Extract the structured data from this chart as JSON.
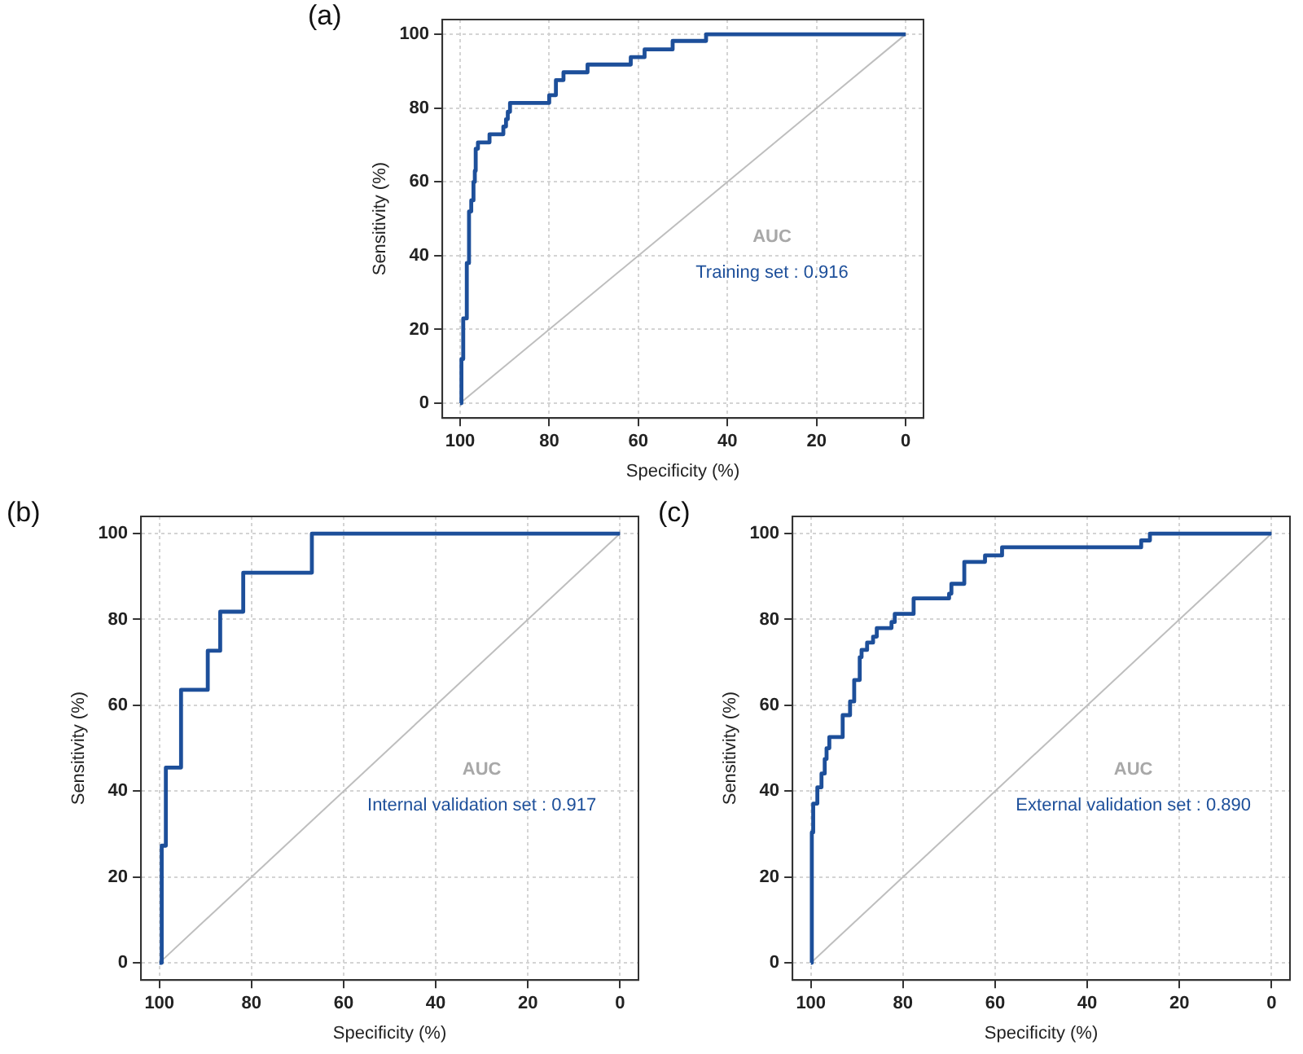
{
  "chart_data": [
    {
      "type": "line",
      "xlabel": "Specificity (%)",
      "ylabel": "Sensitivity (%)",
      "xlim": [
        104,
        -4
      ],
      "ylim": [
        -4,
        104
      ],
      "xticks": [
        100,
        80,
        60,
        40,
        20,
        0
      ],
      "yticks": [
        0,
        20,
        40,
        60,
        80,
        100
      ],
      "grid": true,
      "annotations": [
        "(a)",
        "AUC",
        "Training set : 0.916"
      ],
      "series": [
        {
          "color": "#1d4f9a",
          "x": [
            100,
            99.7,
            99.7,
            99.3,
            99.3,
            98.5,
            98.5,
            98,
            98,
            97.5,
            97.5,
            97,
            97,
            96.7,
            96.7,
            96.5,
            96.5,
            96,
            96,
            93.4,
            93.4,
            90.3,
            90.3,
            89.7,
            89.7,
            89.3,
            89.3,
            88.8,
            88.8,
            80,
            80,
            78.5,
            78.5,
            76.8,
            76.8,
            71.4,
            71.4,
            61.7,
            61.7,
            58.6,
            58.6,
            52.3,
            52.3,
            44.8,
            44.8,
            0
          ],
          "values": [
            0,
            0,
            12,
            12,
            23,
            23,
            38,
            38,
            52,
            52,
            55,
            55,
            60,
            60,
            63,
            63,
            69,
            69,
            70.7,
            70.7,
            72.9,
            72.9,
            75,
            75,
            77,
            77,
            79,
            79,
            81.4,
            81.4,
            83.5,
            83.5,
            87.6,
            87.6,
            89.7,
            89.7,
            91.8,
            91.8,
            93.8,
            93.8,
            95.9,
            95.9,
            98.2,
            98.2,
            100,
            100
          ]
        },
        {
          "color": "#bebebe",
          "x": [
            100,
            0
          ],
          "values": [
            0,
            100
          ]
        }
      ]
    },
    {
      "type": "line",
      "xlabel": "Specificity (%)",
      "ylabel": "Sensitivity (%)",
      "xlim": [
        104,
        -4
      ],
      "ylim": [
        -4,
        104
      ],
      "xticks": [
        100,
        80,
        60,
        40,
        20,
        0
      ],
      "yticks": [
        0,
        20,
        40,
        60,
        80,
        100
      ],
      "grid": true,
      "annotations": [
        "(b)",
        "AUC",
        "Internal validation set : 0.917"
      ],
      "series": [
        {
          "color": "#1d4f9a",
          "x": [
            100,
            99.5,
            99.5,
            98.6,
            98.6,
            95.3,
            95.3,
            89.5,
            89.5,
            86.8,
            86.8,
            81.8,
            81.8,
            66.9,
            66.9,
            0
          ],
          "values": [
            0,
            0,
            27.3,
            27.3,
            45.5,
            45.5,
            63.6,
            63.6,
            72.7,
            72.7,
            81.8,
            81.8,
            90.9,
            90.9,
            100,
            100
          ]
        },
        {
          "color": "#bebebe",
          "x": [
            100,
            0
          ],
          "values": [
            0,
            100
          ]
        }
      ]
    },
    {
      "type": "line",
      "xlabel": "Specificity (%)",
      "ylabel": "Sensitivity (%)",
      "xlim": [
        104,
        -4
      ],
      "ylim": [
        -4,
        104
      ],
      "xticks": [
        100,
        80,
        60,
        40,
        20,
        0
      ],
      "yticks": [
        0,
        20,
        40,
        60,
        80,
        100
      ],
      "grid": true,
      "annotations": [
        "(c)",
        "AUC",
        "External validation set : 0.890"
      ],
      "series": [
        {
          "color": "#1d4f9a",
          "x": [
            100,
            99.8,
            99.8,
            99.5,
            99.5,
            98.6,
            98.6,
            97.7,
            97.7,
            97,
            97,
            96.6,
            96.6,
            96,
            96,
            93.1,
            93.1,
            91.5,
            91.5,
            90.6,
            90.6,
            89.4,
            89.4,
            89,
            89,
            87.8,
            87.8,
            86.5,
            86.5,
            85.7,
            85.7,
            82.5,
            82.5,
            81.8,
            81.8,
            77.7,
            77.7,
            70,
            70,
            69.5,
            69.5,
            66.7,
            66.7,
            62.2,
            62.2,
            58.5,
            58.5,
            28.3,
            28.3,
            26.4,
            26.4,
            0
          ],
          "values": [
            0,
            0,
            30.4,
            30.4,
            37.1,
            37.1,
            40.9,
            40.9,
            44.1,
            44.1,
            47.5,
            47.5,
            50,
            50,
            52.6,
            52.6,
            57.7,
            57.7,
            60.9,
            60.9,
            65.9,
            65.9,
            71.2,
            71.2,
            72.9,
            72.9,
            74.6,
            74.6,
            76,
            76,
            78,
            78,
            79.4,
            79.4,
            81.3,
            81.3,
            84.9,
            84.9,
            86,
            86,
            88.3,
            88.3,
            93.4,
            93.4,
            94.9,
            94.9,
            96.8,
            96.8,
            98.4,
            98.4,
            100,
            100
          ]
        },
        {
          "color": "#bebebe",
          "x": [
            100,
            0
          ],
          "values": [
            0,
            100
          ]
        }
      ]
    }
  ]
}
